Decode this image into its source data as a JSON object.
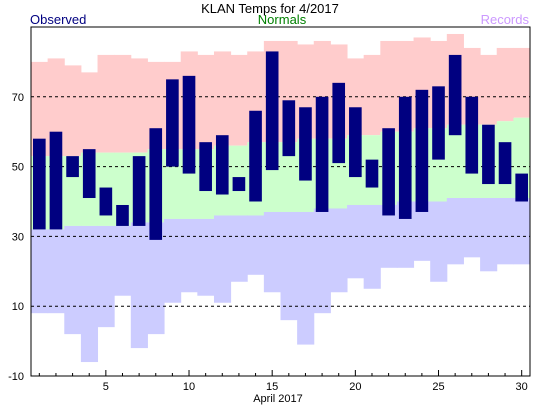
{
  "chart_data": {
    "type": "bar",
    "title": "KLAN Temps for 4/2017",
    "xlabel": "April 2017",
    "legend": {
      "placement": "top",
      "items": [
        {
          "label": "Observed",
          "color": "#000080"
        },
        {
          "label": "Normals",
          "color": "#008000"
        },
        {
          "label": "Records",
          "color": "#cc99ff"
        }
      ]
    },
    "x_ticks": [
      5,
      10,
      15,
      20,
      25,
      30
    ],
    "x_range": [
      0.5,
      30.5
    ],
    "y_ticks": [
      -10,
      10,
      30,
      50,
      70
    ],
    "ylim": [
      -10,
      90
    ],
    "grid": "dashed horizontal at y ticks",
    "colors": {
      "record_high": "#ffcccc",
      "normal_range": "#ccffcc",
      "record_low": "#ccccff",
      "observed": "#000080"
    },
    "days": [
      1,
      2,
      3,
      4,
      5,
      6,
      7,
      8,
      9,
      10,
      11,
      12,
      13,
      14,
      15,
      16,
      17,
      18,
      19,
      20,
      21,
      22,
      23,
      24,
      25,
      26,
      27,
      28,
      29,
      30
    ],
    "series": [
      {
        "name": "Record High",
        "values": [
          80,
          81,
          79,
          77,
          82,
          82,
          81,
          80,
          80,
          83,
          82,
          83,
          82,
          83,
          86,
          86,
          85,
          86,
          85,
          81,
          82,
          86,
          86,
          87,
          86,
          88,
          84,
          82,
          84,
          84
        ]
      },
      {
        "name": "Normal High",
        "values": [
          53,
          53,
          53,
          54,
          54,
          54,
          54,
          55,
          55,
          55,
          55,
          56,
          56,
          57,
          57,
          57,
          58,
          58,
          58,
          59,
          59,
          60,
          60,
          61,
          61,
          62,
          62,
          62,
          63,
          64
        ]
      },
      {
        "name": "Normal Low",
        "values": [
          32,
          32,
          33,
          33,
          33,
          33,
          34,
          34,
          35,
          35,
          35,
          36,
          36,
          36,
          37,
          37,
          37,
          38,
          38,
          39,
          39,
          39,
          40,
          40,
          40,
          41,
          41,
          41,
          41,
          41
        ]
      },
      {
        "name": "Record Low",
        "values": [
          8,
          8,
          2,
          -6,
          4,
          13,
          -2,
          2,
          11,
          14,
          13,
          11,
          17,
          19,
          14,
          6,
          -1,
          8,
          14,
          18,
          15,
          21,
          21,
          23,
          17,
          22,
          24,
          20,
          22,
          22
        ]
      },
      {
        "name": "Observed High",
        "values": [
          58,
          60,
          53,
          55,
          44,
          39,
          53,
          61,
          75,
          76,
          57,
          59,
          47,
          66,
          83,
          69,
          67,
          70,
          74,
          67,
          52,
          61,
          70,
          72,
          73,
          82,
          70,
          62,
          57,
          48
        ]
      },
      {
        "name": "Observed Low",
        "values": [
          32,
          32,
          47,
          41,
          36,
          33,
          33,
          29,
          50,
          48,
          43,
          42,
          43,
          40,
          49,
          53,
          46,
          37,
          51,
          47,
          44,
          36,
          35,
          37,
          52,
          59,
          48,
          45,
          45,
          40
        ]
      }
    ]
  }
}
